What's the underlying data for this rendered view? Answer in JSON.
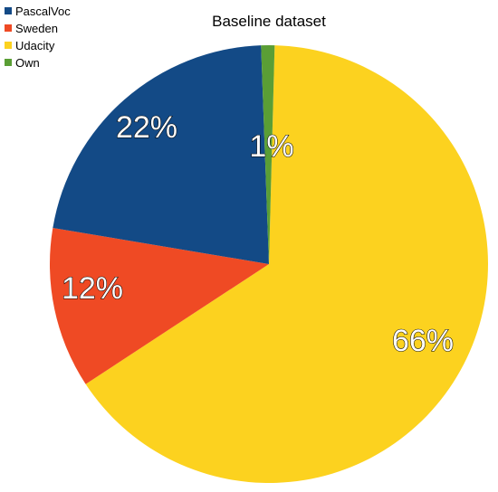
{
  "chart_data": {
    "type": "pie",
    "title": "Baseline dataset",
    "legend_position": "top-left",
    "slices": [
      {
        "label": "PascalVoc",
        "value": 22,
        "display": "22%",
        "color": "#134a86"
      },
      {
        "label": "Sweden",
        "value": 12,
        "display": "12%",
        "color": "#ef4a24"
      },
      {
        "label": "Udacity",
        "value": 66,
        "display": "66%",
        "color": "#fcd21f"
      },
      {
        "label": "Own",
        "value": 1,
        "display": "1%",
        "color": "#5a9e35"
      }
    ],
    "start_angle_deg": 1.5,
    "clockwise": true
  }
}
